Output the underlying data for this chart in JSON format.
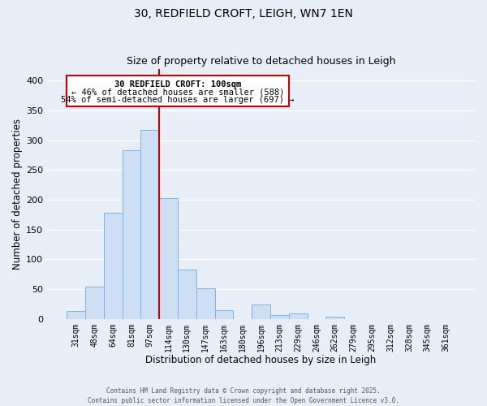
{
  "title": "30, REDFIELD CROFT, LEIGH, WN7 1EN",
  "subtitle": "Size of property relative to detached houses in Leigh",
  "xlabel": "Distribution of detached houses by size in Leigh",
  "ylabel": "Number of detached properties",
  "bar_labels": [
    "31sqm",
    "48sqm",
    "64sqm",
    "81sqm",
    "97sqm",
    "114sqm",
    "130sqm",
    "147sqm",
    "163sqm",
    "180sqm",
    "196sqm",
    "213sqm",
    "229sqm",
    "246sqm",
    "262sqm",
    "279sqm",
    "295sqm",
    "312sqm",
    "328sqm",
    "345sqm",
    "361sqm"
  ],
  "bar_values": [
    13,
    54,
    178,
    283,
    317,
    203,
    83,
    51,
    15,
    0,
    24,
    7,
    9,
    0,
    4,
    0,
    0,
    0,
    0,
    0,
    0
  ],
  "bar_color": "#ccdff5",
  "bar_edge_color": "#7fb3e0",
  "ylim": [
    0,
    420
  ],
  "yticks": [
    0,
    50,
    100,
    150,
    200,
    250,
    300,
    350,
    400
  ],
  "vline_x_idx": 4,
  "vline_color": "#cc0000",
  "annotation_title": "30 REDFIELD CROFT: 100sqm",
  "annotation_line2": "← 46% of detached houses are smaller (588)",
  "annotation_line3": "54% of semi-detached houses are larger (697) →",
  "annotation_box_color": "#cc0000",
  "footer_line1": "Contains HM Land Registry data © Crown copyright and database right 2025.",
  "footer_line2": "Contains public sector information licensed under the Open Government Licence v3.0.",
  "bg_color": "#e8eef8",
  "plot_bg_color": "#e8eef8",
  "grid_color": "#ffffff"
}
